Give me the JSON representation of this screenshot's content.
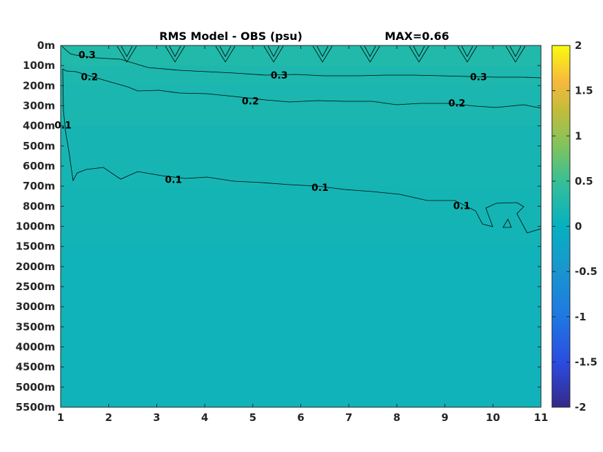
{
  "chart_data": {
    "type": "heatmap",
    "title": "RMS Model - OBS (psu)",
    "max_label": "MAX=0.66",
    "x_ticks": [
      "1",
      "2",
      "3",
      "4",
      "5",
      "6",
      "7",
      "8",
      "9",
      "10",
      "11"
    ],
    "x_range": [
      1,
      11
    ],
    "y_ticks": [
      "0m",
      "100m",
      "200m",
      "300m",
      "400m",
      "500m",
      "600m",
      "700m",
      "800m",
      "1000m",
      "1500m",
      "2000m",
      "2500m",
      "3000m",
      "3500m",
      "4000m",
      "4500m",
      "5000m",
      "5500m"
    ],
    "colorbar": {
      "ticks": [
        "2",
        "1.5",
        "1",
        "0.5",
        "0",
        "-0.5",
        "-1",
        "-1.5",
        "-2"
      ],
      "range": [
        -2,
        2
      ],
      "colormap": "parula"
    },
    "field_levels": [
      0.28,
      0.23,
      0.2,
      0.16,
      0.14,
      0.12,
      0.09
    ],
    "field_level_depths": [
      "0m",
      "100m",
      "200m",
      "400m",
      "800m",
      "1500m",
      "2000m-5500m"
    ],
    "contour_labels": [
      {
        "text": "0.3",
        "x": 1.55,
        "depth_index": 0.5
      },
      {
        "text": "0.2",
        "x": 1.6,
        "depth_index": 1.6
      },
      {
        "text": "0.3",
        "x": 5.55,
        "depth_index": 1.5
      },
      {
        "text": "0.3",
        "x": 9.7,
        "depth_index": 1.6
      },
      {
        "text": "0.2",
        "x": 4.95,
        "depth_index": 2.8
      },
      {
        "text": "0.2",
        "x": 9.25,
        "depth_index": 2.9
      },
      {
        "text": "0.1",
        "x": 1.05,
        "depth_index": 4.0
      },
      {
        "text": "0.1",
        "x": 3.35,
        "depth_index": 6.7
      },
      {
        "text": "0.1",
        "x": 6.4,
        "depth_index": 7.1
      },
      {
        "text": "0.1",
        "x": 9.35,
        "depth_index": 8.0
      }
    ]
  }
}
